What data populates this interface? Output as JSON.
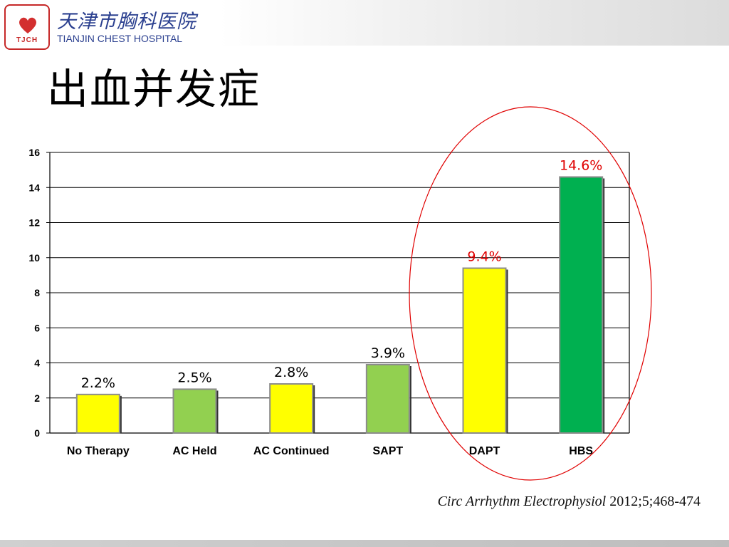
{
  "header": {
    "logo_text": "TJCH",
    "hospital_name_cn": "天津市胸科医院",
    "hospital_name_en": "TIANJIN CHEST HOSPITAL"
  },
  "slide": {
    "title": "出血并发症"
  },
  "chart_data": {
    "type": "bar",
    "categories": [
      "No Therapy",
      "AC Held",
      "AC Continued",
      "SAPT",
      "DAPT",
      "HBS"
    ],
    "values": [
      2.2,
      2.5,
      2.8,
      3.9,
      9.4,
      14.6
    ],
    "value_labels": [
      "2.2%",
      "2.5%",
      "2.8%",
      "3.9%",
      "9.4%",
      "14.6%"
    ],
    "bar_colors": [
      "#ffff00",
      "#92d050",
      "#ffff00",
      "#92d050",
      "#ffff00",
      "#00b050"
    ],
    "label_colors": [
      "#000000",
      "#000000",
      "#000000",
      "#000000",
      "#e00000",
      "#e00000"
    ],
    "ylim": [
      0,
      16
    ],
    "yticks": [
      0,
      2,
      4,
      6,
      8,
      10,
      12,
      14,
      16
    ],
    "grid": true,
    "highlight_color": "#e00000",
    "highlighted_categories": [
      "DAPT",
      "HBS"
    ]
  },
  "citation": {
    "journal": "Circ Arrhythm Electrophysiol",
    "details": " 2012;5;468-474"
  }
}
